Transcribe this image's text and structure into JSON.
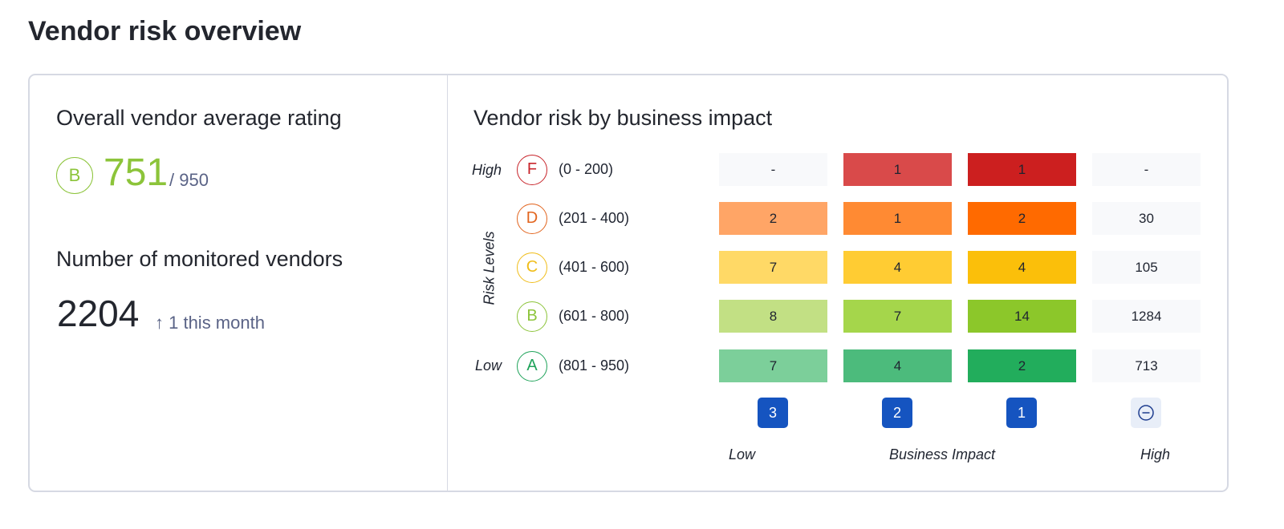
{
  "page_title": "Vendor risk overview",
  "left": {
    "rating_title": "Overall vendor average rating",
    "rating_grade": "B",
    "rating_value": "751",
    "rating_max": "/ 950",
    "vendors_title": "Number of monitored vendors",
    "vendors_count": "2204",
    "vendors_delta": "↑ 1 this month"
  },
  "matrix": {
    "title": "Vendor risk by business impact",
    "y_axis_label": "Risk Levels",
    "y_high": "High",
    "y_low": "Low",
    "x_axis_label": "Business Impact",
    "x_low": "Low",
    "x_high": "High",
    "rows": [
      {
        "grade": "F",
        "range": "(0 - 200)",
        "color": "#c8252b",
        "cells": [
          "-",
          "1",
          "1",
          "-"
        ],
        "fills": [
          "#f8f9fb",
          "#d94a4a",
          "#cc1f1f",
          "#f8f9fb"
        ]
      },
      {
        "grade": "D",
        "range": "(201 - 400)",
        "color": "#e2651f",
        "cells": [
          "2",
          "1",
          "2",
          "30"
        ],
        "fills": [
          "#ffa566",
          "#ff8a33",
          "#ff6a00",
          "#f8f9fb"
        ]
      },
      {
        "grade": "C",
        "range": "(401 - 600)",
        "color": "#f0bd1a",
        "cells": [
          "7",
          "4",
          "4",
          "105"
        ],
        "fills": [
          "#ffd966",
          "#ffcc33",
          "#fbbf0a",
          "#f8f9fb"
        ]
      },
      {
        "grade": "B",
        "range": "(601 - 800)",
        "color": "#8cc43a",
        "cells": [
          "8",
          "7",
          "14",
          "1284"
        ],
        "fills": [
          "#c2e084",
          "#a5d64b",
          "#8cc72a",
          "#f8f9fb"
        ]
      },
      {
        "grade": "A",
        "range": "(801 - 950)",
        "color": "#1fa35a",
        "cells": [
          "7",
          "4",
          "2",
          "713"
        ],
        "fills": [
          "#7ccf9a",
          "#4cbb7c",
          "#22ad5c",
          "#f8f9fb"
        ]
      }
    ],
    "impact_levels": [
      "3",
      "2",
      "1",
      "minus-circle-icon"
    ]
  }
}
